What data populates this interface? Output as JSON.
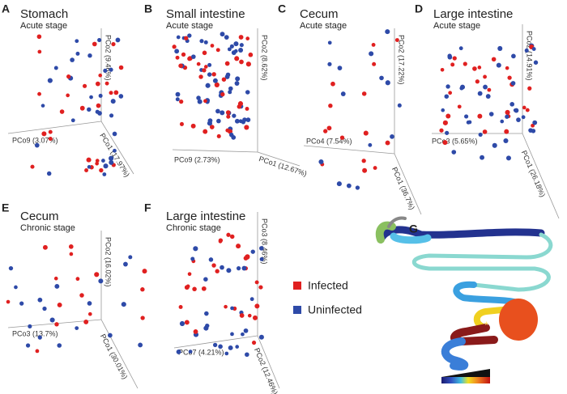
{
  "panels": [
    {
      "letter": "A",
      "title": "Stomach",
      "subtitle": "Acute stage",
      "axes": {
        "vertical": "PCo2 (9.46%)",
        "left": "PCo9 (3.07%)",
        "right": "PCo1 (17.97%)"
      }
    },
    {
      "letter": "B",
      "title": "Small intestine",
      "subtitle": "Acute stage",
      "axes": {
        "vertical": "PCo2 (8.62%)",
        "left": "PCo9 (2.73%)",
        "right": "PCo1 (12.67%)"
      }
    },
    {
      "letter": "C",
      "title": "Cecum",
      "subtitle": "Acute stage",
      "axes": {
        "vertical": "PCo2 (17.22%)",
        "left": "PCo4 (7.54%)",
        "right": "PCo1 (36.7%)"
      }
    },
    {
      "letter": "D",
      "title": "Large intestine",
      "subtitle": "Acute stage",
      "axes": {
        "vertical": "PCo2 (14.91%)",
        "left": "PCo3 (5.65%)",
        "right": "PCo1 (26.18%)"
      }
    },
    {
      "letter": "E",
      "title": "Cecum",
      "subtitle": "Chronic stage",
      "axes": {
        "vertical": "PCo2 (16.02%)",
        "left": "PCo3 (13.7%)",
        "right": "PCo1 (30.01%)"
      }
    },
    {
      "letter": "F",
      "title": "Large intestine",
      "subtitle": "Chronic stage",
      "axes": {
        "vertical": "PCo3 (8.46%)",
        "left": "PCo7 (4.21%)",
        "right": "PCo2 (12.46%)"
      }
    }
  ],
  "legend": {
    "items": [
      "Infected",
      "Uninfected"
    ]
  },
  "panel_g": {
    "letter": "G"
  }
}
